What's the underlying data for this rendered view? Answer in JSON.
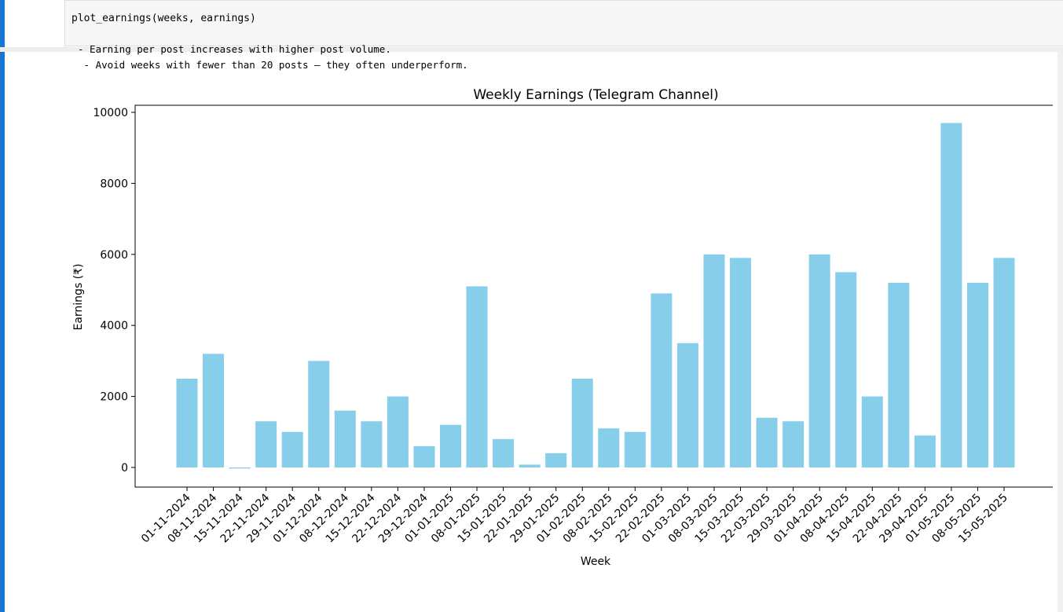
{
  "notebook": {
    "code_cell": {
      "source": "plot_earnings(weeks, earnings)"
    },
    "stream_output": {
      "lines": [
        "- Earning per post increases with higher post volume.",
        " - Avoid weeks with fewer than 20 posts – they often underperform."
      ]
    }
  },
  "colors": {
    "bar": "#87ceeb",
    "cell_accent": "#1976d2"
  },
  "chart_data": {
    "type": "bar",
    "title": "Weekly Earnings (Telegram Channel)",
    "xlabel": "Week",
    "ylabel": "Earnings (₹)",
    "ylim": [
      -500,
      10200
    ],
    "yticks": [
      0,
      2000,
      4000,
      6000,
      8000,
      10000
    ],
    "grid": false,
    "categories": [
      "01-11-2024",
      "08-11-2024",
      "15-11-2024",
      "22-11-2024",
      "29-11-2024",
      "01-12-2024",
      "08-12-2024",
      "15-12-2024",
      "22-12-2024",
      "29-12-2024",
      "01-01-2025",
      "08-01-2025",
      "15-01-2025",
      "22-01-2025",
      "29-01-2025",
      "01-02-2025",
      "08-02-2025",
      "15-02-2025",
      "22-02-2025",
      "01-03-2025",
      "08-03-2025",
      "15-03-2025",
      "22-03-2025",
      "29-03-2025",
      "01-04-2025",
      "08-04-2025",
      "15-04-2025",
      "22-04-2025",
      "29-04-2025",
      "01-05-2025",
      "08-05-2025",
      "15-05-2025"
    ],
    "values": [
      2500,
      3200,
      -30,
      1300,
      1000,
      3000,
      1600,
      1300,
      2000,
      600,
      1200,
      5100,
      800,
      80,
      400,
      2500,
      1100,
      1000,
      4900,
      3500,
      6000,
      5900,
      1400,
      1300,
      6000,
      5500,
      2000,
      5200,
      900,
      9700,
      5200,
      5900
    ]
  }
}
